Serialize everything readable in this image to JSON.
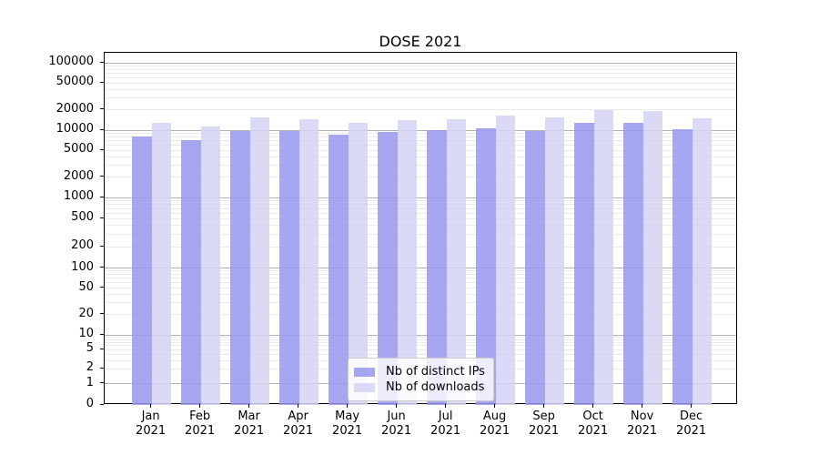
{
  "chart_data": {
    "type": "bar",
    "title": "DOSE 2021",
    "categories": [
      "Jan 2021",
      "Feb 2021",
      "Mar 2021",
      "Apr 2021",
      "May 2021",
      "Jun 2021",
      "Jul 2021",
      "Aug 2021",
      "Sep 2021",
      "Oct 2021",
      "Nov 2021",
      "Dec 2021"
    ],
    "series": [
      {
        "name": "Nb of distinct IPs",
        "color": "rgba(150,150,239,0.85)",
        "values": [
          8000,
          7200,
          9700,
          9700,
          8600,
          9500,
          10000,
          10500,
          9800,
          13000,
          12900,
          10300
        ]
      },
      {
        "name": "Nb of downloads",
        "color": "rgba(211,211,244,0.85)",
        "values": [
          13000,
          11500,
          15600,
          14700,
          12700,
          14000,
          14700,
          16300,
          15400,
          19800,
          19400,
          15200
        ]
      }
    ],
    "y_scale": "symlog",
    "ylim": [
      0,
      100000
    ],
    "y_ticks": [
      0,
      1,
      2,
      5,
      10,
      20,
      50,
      100,
      200,
      500,
      1000,
      2000,
      5000,
      10000,
      20000,
      50000,
      100000
    ],
    "grid": "both",
    "legend_position": "lower center",
    "colors": {
      "bar_distinct_ips": "#a6a6f1",
      "bar_downloads": "#d9d9f8",
      "grid_major": "#b2b2b2",
      "grid_minor": "#ebebeb"
    }
  }
}
